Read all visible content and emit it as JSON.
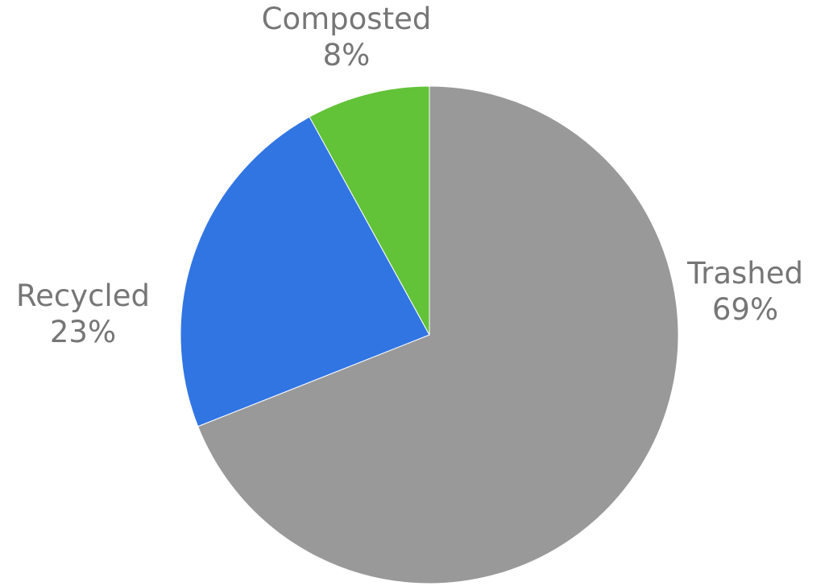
{
  "chart_data": {
    "type": "pie",
    "title": "",
    "slices": [
      {
        "label": "Trashed",
        "value": 69,
        "value_label": "69%",
        "color": "#999999"
      },
      {
        "label": "Recycled",
        "value": 23,
        "value_label": "23%",
        "color": "#3175e3"
      },
      {
        "label": "Composted",
        "value": 8,
        "value_label": "8%",
        "color": "#62c238"
      }
    ],
    "start_angle_deg": 0,
    "direction": "clockwise",
    "label_color": "#767676"
  }
}
